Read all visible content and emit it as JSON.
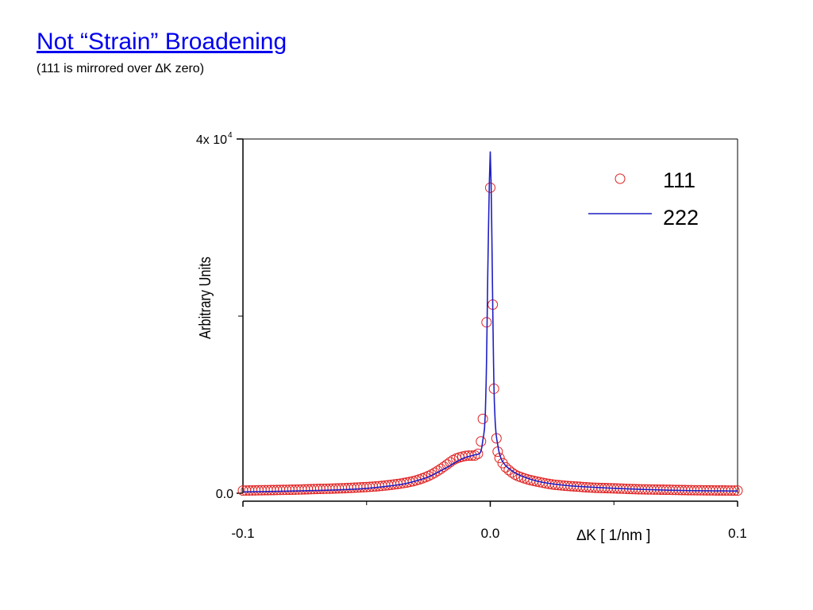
{
  "slide": {
    "title": "Not “Strain” Broadening",
    "subtitle": "(111 is mirrored over ∆K zero)"
  },
  "chart_data": {
    "type": "line",
    "xlabel": "∆K  [ 1/nm ]",
    "ylabel": "Arbitrary Units",
    "xlim": [
      -0.1,
      0.1
    ],
    "ylim": [
      0,
      40000
    ],
    "x_tick_labels": [
      {
        "value": -0.1,
        "label": "-0.1"
      },
      {
        "value": 0.0,
        "label": "0.0"
      },
      {
        "value": 0.1,
        "label": "0.1"
      }
    ],
    "x_minor_ticks": [
      -0.05,
      0.05
    ],
    "y_tick_labels": [
      {
        "value": 0,
        "label": "0.0"
      },
      {
        "value": 40000,
        "label": "4x 10",
        "exponent": "4"
      }
    ],
    "y_minor_ticks": [
      20000
    ],
    "grid": false,
    "legend_position": "top-right",
    "series": [
      {
        "name": "111",
        "style": "open-circle",
        "color": "#e02020",
        "x": [
          -0.1,
          -0.09,
          -0.08,
          -0.07,
          -0.06,
          -0.05,
          -0.045,
          -0.04,
          -0.035,
          -0.03,
          -0.025,
          -0.022,
          -0.019,
          -0.017,
          -0.015,
          -0.013,
          -0.011,
          -0.009,
          -0.007,
          -0.005,
          -0.003,
          -0.0015,
          0.0,
          0.001,
          0.0015,
          0.0025,
          0.003,
          0.004,
          0.005,
          0.006,
          0.008,
          0.01,
          0.013,
          0.016,
          0.02,
          0.025,
          0.03,
          0.035,
          0.04,
          0.05,
          0.06,
          0.07,
          0.08,
          0.09,
          0.1
        ],
        "y": [
          300,
          350,
          400,
          480,
          560,
          700,
          800,
          950,
          1150,
          1450,
          1950,
          2400,
          2950,
          3350,
          3750,
          4000,
          4150,
          4250,
          4250,
          4450,
          8400,
          19300,
          34500,
          21300,
          11800,
          6200,
          4700,
          3850,
          3400,
          3000,
          2500,
          2100,
          1750,
          1500,
          1250,
          1000,
          850,
          750,
          650,
          550,
          450,
          400,
          350,
          320,
          300
        ]
      },
      {
        "name": "222",
        "style": "line",
        "color": "#1f1fc4",
        "x": [
          -0.1,
          -0.08,
          -0.06,
          -0.05,
          -0.04,
          -0.035,
          -0.03,
          -0.025,
          -0.02,
          -0.017,
          -0.014,
          -0.012,
          -0.01,
          -0.008,
          -0.006,
          -0.004,
          -0.003,
          -0.002,
          -0.0015,
          -0.001,
          -0.0005,
          0.0,
          0.0005,
          0.001,
          0.0015,
          0.002,
          0.003,
          0.004,
          0.006,
          0.008,
          0.01,
          0.015,
          0.02,
          0.03,
          0.04,
          0.06,
          0.08,
          0.1
        ],
        "y": [
          150,
          250,
          400,
          550,
          850,
          1050,
          1400,
          1850,
          2550,
          3000,
          3500,
          3800,
          4050,
          4200,
          4350,
          4600,
          6000,
          9000,
          15000,
          25000,
          33000,
          38600,
          32000,
          21000,
          12000,
          8000,
          5500,
          4200,
          3200,
          2700,
          2300,
          1700,
          1300,
          900,
          700,
          450,
          300,
          250
        ]
      }
    ]
  }
}
